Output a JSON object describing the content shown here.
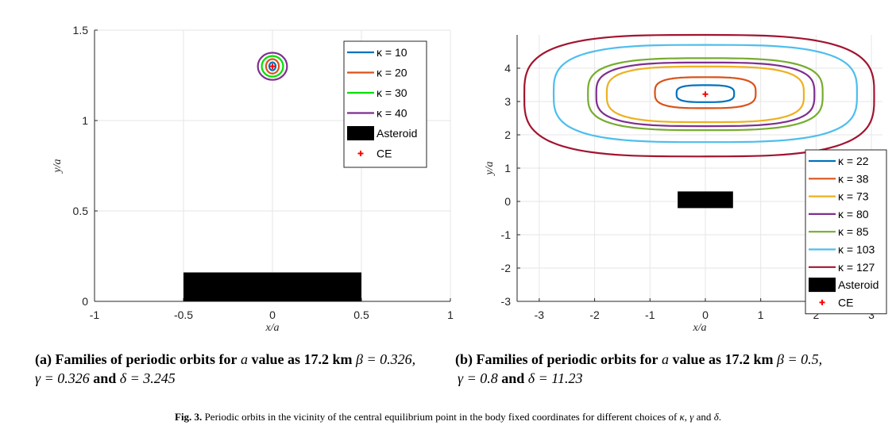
{
  "chart_data": [
    {
      "type": "line",
      "xlabel": "x/a",
      "ylabel": "y/a",
      "xlim": [
        -1,
        1
      ],
      "ylim": [
        0,
        1.5
      ],
      "xticks": [
        -1,
        -0.5,
        0,
        0.5,
        1
      ],
      "xtick_labels": [
        "-1",
        "-0.5",
        "0",
        "0.5",
        "1"
      ],
      "yticks": [
        0,
        0.5,
        1,
        1.5
      ],
      "ytick_labels": [
        "0",
        "0.5",
        "1",
        "1.5"
      ],
      "grid": true,
      "legend_position": "top-right",
      "series": [
        {
          "name": "κ = 10",
          "kappa_label": "κ = 10",
          "color": "#0072BD",
          "shape": "ellipse",
          "center": [
            0,
            1.3
          ],
          "half_width": 0.018,
          "half_height": 0.022
        },
        {
          "name": "κ = 20",
          "kappa_label": "κ = 20",
          "color": "#D95319",
          "shape": "ellipse",
          "center": [
            0,
            1.3
          ],
          "half_width": 0.036,
          "half_height": 0.04
        },
        {
          "name": "κ = 30",
          "kappa_label": "κ = 30",
          "color": "#00E000",
          "shape": "ellipse",
          "center": [
            0,
            1.3
          ],
          "half_width": 0.06,
          "half_height": 0.057
        },
        {
          "name": "κ = 40",
          "kappa_label": "κ = 40",
          "color": "#7E2F8E",
          "shape": "ellipse",
          "center": [
            0,
            1.3
          ],
          "half_width": 0.082,
          "half_height": 0.075
        }
      ],
      "asteroid": {
        "label": "Asteroid",
        "x": [
          -0.5,
          0.5
        ],
        "y": [
          0,
          0.16
        ],
        "color": "#000000"
      },
      "ce_point": {
        "label": "CE",
        "x": 0,
        "y": 1.3,
        "color": "#ff0000"
      }
    },
    {
      "type": "line",
      "xlabel": "x/a",
      "ylabel": "y/a",
      "xlim": [
        -3.4,
        3.2
      ],
      "ylim": [
        -3,
        5
      ],
      "xticks": [
        -3,
        -2,
        -1,
        0,
        1,
        2,
        3
      ],
      "xtick_labels": [
        "-3",
        "-2",
        "-1",
        "0",
        "1",
        "2",
        "3"
      ],
      "yticks": [
        -3,
        -2,
        -1,
        0,
        1,
        2,
        3,
        4
      ],
      "ytick_labels": [
        "-3",
        "-2",
        "-1",
        "0",
        "1",
        "2",
        "3",
        "4"
      ],
      "grid": true,
      "legend_position": "bottom-right",
      "series": [
        {
          "name": "κ = 22",
          "kappa_label": "κ = 22",
          "color": "#0072BD",
          "shape": "orbit",
          "x_range": [
            -0.52,
            0.52
          ],
          "y_top": 3.49,
          "y_bottom": 2.98
        },
        {
          "name": "κ = 38",
          "kappa_label": "κ = 38",
          "color": "#D95319",
          "shape": "orbit",
          "x_range": [
            -0.91,
            0.91
          ],
          "y_top": 3.73,
          "y_bottom": 2.8
        },
        {
          "name": "κ = 73",
          "kappa_label": "κ = 73",
          "color": "#EDB120",
          "shape": "orbit",
          "x_range": [
            -1.78,
            1.78
          ],
          "y_top": 4.05,
          "y_bottom": 2.38
        },
        {
          "name": "κ = 80",
          "kappa_label": "κ = 80",
          "color": "#7E2F8E",
          "shape": "orbit",
          "x_range": [
            -1.97,
            1.97
          ],
          "y_top": 4.17,
          "y_bottom": 2.26
        },
        {
          "name": "κ = 85",
          "kappa_label": "κ = 85",
          "color": "#77AC30",
          "shape": "orbit",
          "x_range": [
            -2.12,
            2.12
          ],
          "y_top": 4.3,
          "y_bottom": 2.14
        },
        {
          "name": "κ = 103",
          "kappa_label": "κ = 103",
          "color": "#4DBEEE",
          "shape": "orbit",
          "x_range": [
            -2.74,
            2.74
          ],
          "y_top": 4.7,
          "y_bottom": 1.78
        },
        {
          "name": "κ = 127",
          "kappa_label": "κ = 127",
          "color": "#A2142F",
          "shape": "orbit",
          "x_range": [
            -3.27,
            3.05
          ],
          "y_top": 5.0,
          "y_bottom": 1.35
        }
      ],
      "asteroid": {
        "label": "Asteroid",
        "x": [
          -0.5,
          0.5
        ],
        "y": [
          -0.2,
          0.3
        ],
        "color": "#000000"
      },
      "ce_point": {
        "label": "CE",
        "x": 0,
        "y": 3.22,
        "color": "#ff0000"
      }
    }
  ],
  "captions": {
    "a": {
      "tag": "(a)",
      "lead": "Families of periodic orbits for",
      "a_sym": "a",
      "value_text": "value as 17.2 km",
      "beta": "β = 0.326,",
      "gamma": "γ = 0.326",
      "and": "and",
      "delta": "δ = 3.245"
    },
    "b": {
      "tag": "(b)",
      "lead": "Families of periodic orbits for",
      "a_sym": "a",
      "value_text": "value as 17.2 km",
      "beta": "β = 0.5,",
      "gamma": "γ = 0.8",
      "and": "and",
      "delta": "δ = 11.23"
    },
    "figure": {
      "label": "Fig. 3.",
      "text": "Periodic orbits in the vicinity of the central equilibrium point in the body fixed coordinates for different choices of",
      "k": "κ",
      "sep1": ",",
      "g": "γ",
      "and": "and",
      "d": "δ",
      "end": "."
    }
  }
}
